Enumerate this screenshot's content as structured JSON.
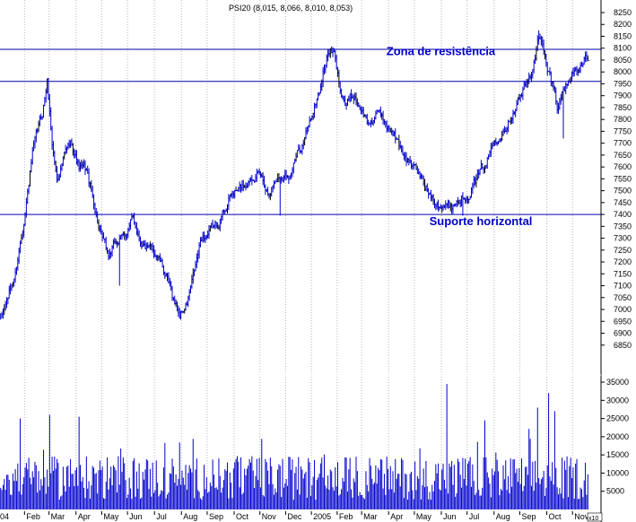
{
  "chart_data": {
    "type": "ohlc",
    "title": "PSI20 (8,015, 8,066, 8,010, 8,053)",
    "colors": {
      "price": "#0000cc",
      "volume": "#0000cc",
      "lines": "#0000aa",
      "grid": "#b8b8b8",
      "text": "#000000"
    },
    "price_axis": {
      "ylim": [
        6800,
        8250
      ],
      "ticks": [
        6850,
        6900,
        6950,
        7000,
        7050,
        7100,
        7150,
        7200,
        7250,
        7300,
        7350,
        7400,
        7450,
        7500,
        7550,
        7600,
        7650,
        7700,
        7750,
        7800,
        7850,
        7900,
        7950,
        8000,
        8050,
        8100,
        8150,
        8200,
        8250
      ]
    },
    "volume_axis": {
      "ylim": [
        0,
        36500
      ],
      "ticks": [
        5000,
        10000,
        15000,
        20000,
        25000,
        30000,
        35000
      ],
      "unit_label": "x10"
    },
    "x_axis": {
      "start_label": "04",
      "months": [
        {
          "label": "Feb",
          "idx": 20
        },
        {
          "label": "Mar",
          "idx": 40
        },
        {
          "label": "Apr",
          "idx": 62
        },
        {
          "label": "May",
          "idx": 83
        },
        {
          "label": "Jun",
          "idx": 104
        },
        {
          "label": "Jul",
          "idx": 126
        },
        {
          "label": "Aug",
          "idx": 148
        },
        {
          "label": "Sep",
          "idx": 169
        },
        {
          "label": "Oct",
          "idx": 191
        },
        {
          "label": "Nov",
          "idx": 212
        },
        {
          "label": "Dec",
          "idx": 233
        },
        {
          "label": "2005",
          "idx": 254
        },
        {
          "label": "Feb",
          "idx": 275
        },
        {
          "label": "Mar",
          "idx": 295
        },
        {
          "label": "Apr",
          "idx": 317
        },
        {
          "label": "May",
          "idx": 338
        },
        {
          "label": "Jun",
          "idx": 360
        },
        {
          "label": "Jul",
          "idx": 381
        },
        {
          "label": "Aug",
          "idx": 403
        },
        {
          "label": "Sep",
          "idx": 424
        },
        {
          "label": "Oct",
          "idx": 446
        },
        {
          "label": "Nov",
          "idx": 467
        }
      ],
      "total_bars": 480
    },
    "horizontal_lines": [
      {
        "value": 8095,
        "kind": "resistance"
      },
      {
        "value": 7960,
        "kind": "resistance"
      },
      {
        "value": 7400,
        "kind": "support"
      }
    ],
    "annotations": [
      {
        "text": "Zona de resistência",
        "anchor_value": 8070,
        "anchor_idx": 313
      },
      {
        "text": "Suporte horizontal",
        "anchor_value": 7355,
        "anchor_idx": 348
      }
    ],
    "price_keypoints": [
      [
        0,
        6950
      ],
      [
        6,
        7050
      ],
      [
        12,
        7150
      ],
      [
        18,
        7350
      ],
      [
        26,
        7650
      ],
      [
        34,
        7820
      ],
      [
        38,
        7960
      ],
      [
        42,
        7700
      ],
      [
        46,
        7550
      ],
      [
        52,
        7650
      ],
      [
        58,
        7700
      ],
      [
        64,
        7600
      ],
      [
        70,
        7580
      ],
      [
        76,
        7450
      ],
      [
        82,
        7300
      ],
      [
        88,
        7220
      ],
      [
        94,
        7280
      ],
      [
        100,
        7300
      ],
      [
        108,
        7380
      ],
      [
        114,
        7300
      ],
      [
        120,
        7250
      ],
      [
        128,
        7230
      ],
      [
        134,
        7150
      ],
      [
        140,
        7050
      ],
      [
        146,
        6980
      ],
      [
        152,
        7020
      ],
      [
        158,
        7150
      ],
      [
        164,
        7300
      ],
      [
        170,
        7320
      ],
      [
        176,
        7350
      ],
      [
        182,
        7420
      ],
      [
        188,
        7480
      ],
      [
        194,
        7500
      ],
      [
        200,
        7530
      ],
      [
        206,
        7580
      ],
      [
        212,
        7560
      ],
      [
        218,
        7500
      ],
      [
        224,
        7550
      ],
      [
        230,
        7570
      ],
      [
        236,
        7580
      ],
      [
        242,
        7650
      ],
      [
        248,
        7720
      ],
      [
        254,
        7820
      ],
      [
        260,
        7920
      ],
      [
        264,
        8020
      ],
      [
        268,
        8090
      ],
      [
        272,
        8070
      ],
      [
        276,
        7950
      ],
      [
        282,
        7870
      ],
      [
        288,
        7900
      ],
      [
        294,
        7850
      ],
      [
        300,
        7780
      ],
      [
        306,
        7820
      ],
      [
        312,
        7800
      ],
      [
        318,
        7760
      ],
      [
        324,
        7700
      ],
      [
        330,
        7650
      ],
      [
        336,
        7600
      ],
      [
        342,
        7560
      ],
      [
        348,
        7500
      ],
      [
        354,
        7470
      ],
      [
        360,
        7450
      ],
      [
        366,
        7430
      ],
      [
        372,
        7460
      ],
      [
        378,
        7480
      ],
      [
        384,
        7520
      ],
      [
        390,
        7560
      ],
      [
        396,
        7620
      ],
      [
        402,
        7700
      ],
      [
        408,
        7760
      ],
      [
        414,
        7800
      ],
      [
        420,
        7870
      ],
      [
        426,
        7920
      ],
      [
        432,
        7970
      ],
      [
        436,
        8080
      ],
      [
        439,
        8150
      ],
      [
        442,
        8100
      ],
      [
        446,
        8000
      ],
      [
        450,
        7950
      ],
      [
        454,
        7850
      ],
      [
        456,
        7900
      ],
      [
        460,
        7930
      ],
      [
        466,
        7990
      ],
      [
        472,
        8030
      ],
      [
        479,
        8053
      ]
    ],
    "price_volatility": 26,
    "price_spikes": [
      {
        "idx": 39,
        "high": 7975
      },
      {
        "idx": 97,
        "low": 7100
      },
      {
        "idx": 459,
        "low": 7720
      },
      {
        "idx": 228,
        "low": 7395
      },
      {
        "idx": 377,
        "low": 7395
      },
      {
        "idx": 439,
        "high": 8175
      }
    ],
    "volume_base": 10500,
    "volume_spikes": [
      {
        "idx": 364,
        "value": 34500
      },
      {
        "idx": 447,
        "value": 32000
      },
      {
        "idx": 438,
        "value": 28000
      },
      {
        "idx": 452,
        "value": 27000
      },
      {
        "idx": 395,
        "value": 24500
      },
      {
        "idx": 40,
        "value": 26000
      },
      {
        "idx": 16,
        "value": 25000
      },
      {
        "idx": 64,
        "value": 25500
      }
    ]
  }
}
